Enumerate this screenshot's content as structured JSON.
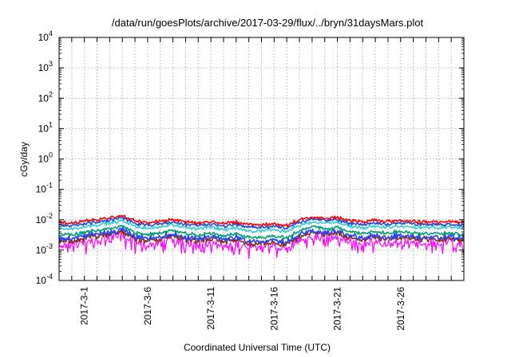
{
  "chart_data": {
    "type": "line",
    "title": "/data/run/goesPlots/archive/2017-03-29/flux/../bryn/31daysMars.plot",
    "xlabel": "Coordinated Universal Time (UTC)",
    "ylabel": "cGy/day",
    "yscale": "log",
    "ylim": [
      0.0001,
      10000
    ],
    "y_ticks": [
      {
        "base": "10",
        "exp": "-4"
      },
      {
        "base": "10",
        "exp": "-3"
      },
      {
        "base": "10",
        "exp": "-2"
      },
      {
        "base": "10",
        "exp": "-1"
      },
      {
        "base": "10",
        "exp": "0"
      },
      {
        "base": "10",
        "exp": "1"
      },
      {
        "base": "10",
        "exp": "2"
      },
      {
        "base": "10",
        "exp": "3"
      },
      {
        "base": "10",
        "exp": "4"
      }
    ],
    "xlim": [
      "2017-02-27",
      "2017-03-31"
    ],
    "x_ticks": [
      "2017-3-1",
      "2017-3-6",
      "2017-3-11",
      "2017-3-16",
      "2017-3-21",
      "2017-3-26"
    ],
    "grid": true,
    "legend": "none",
    "series": [
      {
        "color": "#ff00ff",
        "approx_range": [
          0.0008,
          0.004
        ],
        "values": [
          0.0016,
          0.0015,
          0.0018,
          0.0022,
          0.0025,
          0.0032,
          0.0017,
          0.0015,
          0.0017,
          0.0022,
          0.0016,
          0.0015,
          0.0017,
          0.0013,
          0.0017,
          0.0012,
          0.0012,
          0.0014,
          0.0011,
          0.002,
          0.0029,
          0.0024,
          0.0027,
          0.0018,
          0.0016,
          0.0019,
          0.0017,
          0.002,
          0.0017,
          0.0016,
          0.0017,
          0.0016
        ]
      },
      {
        "color": "#8a2b0e",
        "approx_range": [
          0.0012,
          0.004
        ],
        "values": [
          0.0022,
          0.002,
          0.0024,
          0.003,
          0.0034,
          0.0042,
          0.0023,
          0.002,
          0.0023,
          0.003,
          0.0022,
          0.002,
          0.0023,
          0.0018,
          0.0023,
          0.0016,
          0.0016,
          0.0019,
          0.0015,
          0.0028,
          0.0039,
          0.0032,
          0.0036,
          0.0025,
          0.0022,
          0.0026,
          0.0023,
          0.0027,
          0.0023,
          0.0022,
          0.0023,
          0.0022
        ]
      },
      {
        "color": "#2244ff",
        "approx_range": [
          0.0012,
          0.005
        ],
        "values": [
          0.0026,
          0.0024,
          0.0028,
          0.0035,
          0.0039,
          0.0048,
          0.0027,
          0.0024,
          0.0027,
          0.0035,
          0.0026,
          0.0024,
          0.0027,
          0.0021,
          0.0027,
          0.0019,
          0.0019,
          0.0022,
          0.0018,
          0.0032,
          0.0045,
          0.0037,
          0.0042,
          0.0029,
          0.0026,
          0.003,
          0.0027,
          0.0031,
          0.0027,
          0.0026,
          0.0027,
          0.0026
        ]
      },
      {
        "color": "#009e73",
        "approx_range": [
          0.0018,
          0.006
        ],
        "values": [
          0.0035,
          0.0032,
          0.0038,
          0.0045,
          0.005,
          0.0065,
          0.0036,
          0.0033,
          0.0036,
          0.0046,
          0.0035,
          0.0032,
          0.0036,
          0.0028,
          0.0036,
          0.0026,
          0.0026,
          0.003,
          0.0024,
          0.0042,
          0.006,
          0.005,
          0.0055,
          0.0039,
          0.0035,
          0.004,
          0.0036,
          0.0042,
          0.0036,
          0.0034,
          0.0036,
          0.0034
        ]
      },
      {
        "color": "#33ccdd",
        "approx_range": [
          0.003,
          0.012
        ],
        "values": [
          0.0055,
          0.005,
          0.0058,
          0.0068,
          0.0078,
          0.0095,
          0.0058,
          0.0052,
          0.0058,
          0.0068,
          0.0056,
          0.0051,
          0.0057,
          0.0046,
          0.0056,
          0.0042,
          0.0042,
          0.0048,
          0.004,
          0.0065,
          0.0085,
          0.0075,
          0.008,
          0.006,
          0.0055,
          0.0062,
          0.0057,
          0.0064,
          0.0056,
          0.0054,
          0.0056,
          0.0054
        ]
      },
      {
        "color": "#1f4fd8",
        "approx_range": [
          0.004,
          0.012
        ],
        "values": [
          0.007,
          0.0064,
          0.0074,
          0.0085,
          0.0095,
          0.0115,
          0.0074,
          0.0066,
          0.0073,
          0.0085,
          0.0071,
          0.0065,
          0.0072,
          0.006,
          0.0071,
          0.0055,
          0.0055,
          0.0062,
          0.0052,
          0.0082,
          0.0105,
          0.0095,
          0.0098,
          0.0076,
          0.007,
          0.0078,
          0.0072,
          0.0081,
          0.0071,
          0.0068,
          0.0071,
          0.0068
        ]
      },
      {
        "color": "#ff0000",
        "approx_range": [
          0.006,
          0.015
        ],
        "values": [
          0.0085,
          0.0078,
          0.009,
          0.0102,
          0.0115,
          0.0135,
          0.009,
          0.008,
          0.0088,
          0.0102,
          0.0086,
          0.0079,
          0.0087,
          0.0074,
          0.0086,
          0.0068,
          0.0068,
          0.0076,
          0.0064,
          0.0099,
          0.0125,
          0.0112,
          0.0118,
          0.0092,
          0.0085,
          0.0095,
          0.0088,
          0.0098,
          0.0086,
          0.0083,
          0.0086,
          0.0083
        ]
      }
    ]
  }
}
